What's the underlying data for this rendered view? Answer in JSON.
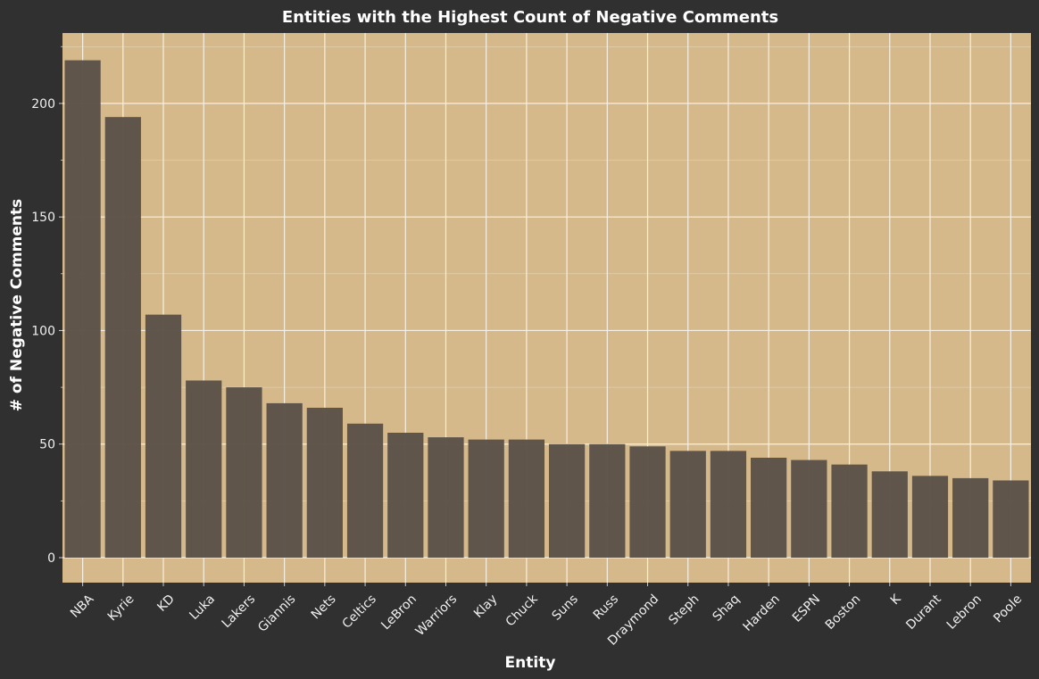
{
  "chart_data": {
    "type": "bar",
    "title": "Entities with the Highest Count of Negative Comments",
    "xlabel": "Entity",
    "ylabel": "# of Negative Comments",
    "categories": [
      "NBA",
      "Kyrie",
      "KD",
      "Luka",
      "Lakers",
      "Giannis",
      "Nets",
      "Celtics",
      "LeBron",
      "Warriors",
      "Klay",
      "Chuck",
      "Suns",
      "Russ",
      "Draymond",
      "Steph",
      "Shaq",
      "Harden",
      "ESPN",
      "Boston",
      "K",
      "Durant",
      "Lebron",
      "Poole"
    ],
    "values": [
      219,
      194,
      107,
      78,
      75,
      68,
      66,
      59,
      55,
      53,
      52,
      52,
      50,
      50,
      49,
      47,
      47,
      44,
      43,
      41,
      38,
      36,
      35,
      34
    ],
    "ylim": [
      -11,
      231
    ],
    "yticks": [
      0,
      50,
      100,
      150,
      200
    ],
    "grid": true,
    "colors": {
      "background": "#303030",
      "panel": "#d5b98a",
      "bar": "#5b5248",
      "grid": "#f5f0e6",
      "text": "#ffffff"
    }
  }
}
